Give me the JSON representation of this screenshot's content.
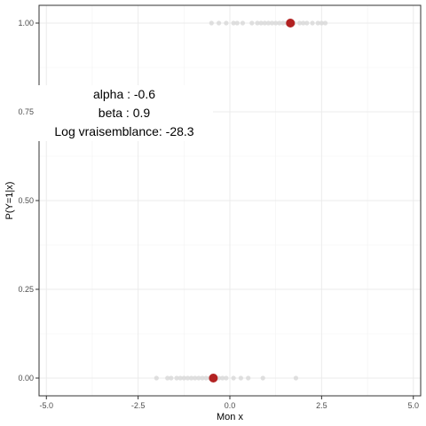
{
  "chart_data": {
    "type": "scatter",
    "xlabel": "Mon x",
    "ylabel": "P(Y=1|x)",
    "xlim": [
      -5.2,
      5.2
    ],
    "ylim": [
      -0.05,
      1.05
    ],
    "x_ticks": [
      -5.0,
      -2.5,
      0.0,
      2.5,
      5.0
    ],
    "x_tick_labels": [
      "-5.0",
      "-2.5",
      "0.0",
      "2.5",
      "5.0"
    ],
    "y_ticks": [
      0.0,
      0.25,
      0.5,
      0.75,
      1.0
    ],
    "y_tick_labels": [
      "0.00",
      "0.25",
      "0.50",
      "0.75",
      "1.00"
    ],
    "grid": true,
    "series": [
      {
        "color": "#d9d9d9",
        "points": [
          {
            "x": -2.0,
            "y": 0
          },
          {
            "x": -1.7,
            "y": 0
          },
          {
            "x": -1.6,
            "y": 0
          },
          {
            "x": -1.45,
            "y": 0
          },
          {
            "x": -1.35,
            "y": 0
          },
          {
            "x": -1.25,
            "y": 0
          },
          {
            "x": -1.15,
            "y": 0
          },
          {
            "x": -1.05,
            "y": 0
          },
          {
            "x": -0.95,
            "y": 0
          },
          {
            "x": -0.85,
            "y": 0
          },
          {
            "x": -0.75,
            "y": 0
          },
          {
            "x": -0.65,
            "y": 0
          },
          {
            "x": -0.55,
            "y": 0
          },
          {
            "x": -0.45,
            "y": 0
          },
          {
            "x": -0.3,
            "y": 0
          },
          {
            "x": -0.2,
            "y": 0
          },
          {
            "x": -0.1,
            "y": 0
          },
          {
            "x": 0.1,
            "y": 0
          },
          {
            "x": 0.3,
            "y": 0
          },
          {
            "x": 0.5,
            "y": 0
          },
          {
            "x": 0.9,
            "y": 0
          },
          {
            "x": 1.8,
            "y": 0
          },
          {
            "x": -0.5,
            "y": 1
          },
          {
            "x": -0.3,
            "y": 1
          },
          {
            "x": -0.1,
            "y": 1
          },
          {
            "x": 0.1,
            "y": 1
          },
          {
            "x": 0.2,
            "y": 1
          },
          {
            "x": 0.35,
            "y": 1
          },
          {
            "x": 0.6,
            "y": 1
          },
          {
            "x": 0.75,
            "y": 1
          },
          {
            "x": 0.85,
            "y": 1
          },
          {
            "x": 0.95,
            "y": 1
          },
          {
            "x": 1.05,
            "y": 1
          },
          {
            "x": 1.15,
            "y": 1
          },
          {
            "x": 1.25,
            "y": 1
          },
          {
            "x": 1.35,
            "y": 1
          },
          {
            "x": 1.45,
            "y": 1
          },
          {
            "x": 1.55,
            "y": 1
          },
          {
            "x": 1.75,
            "y": 1
          },
          {
            "x": 1.9,
            "y": 1
          },
          {
            "x": 2.0,
            "y": 1
          },
          {
            "x": 2.1,
            "y": 1
          },
          {
            "x": 2.25,
            "y": 1
          },
          {
            "x": 2.4,
            "y": 1
          },
          {
            "x": 2.5,
            "y": 1
          },
          {
            "x": 2.6,
            "y": 1
          }
        ]
      },
      {
        "color": "#b22222",
        "points": [
          {
            "x": -0.45,
            "y": 0
          },
          {
            "x": 1.65,
            "y": 1
          }
        ]
      }
    ],
    "annotation": [
      "alpha : -0.6",
      "beta : 0.9",
      "Log vraisemblance: -28.3"
    ]
  }
}
